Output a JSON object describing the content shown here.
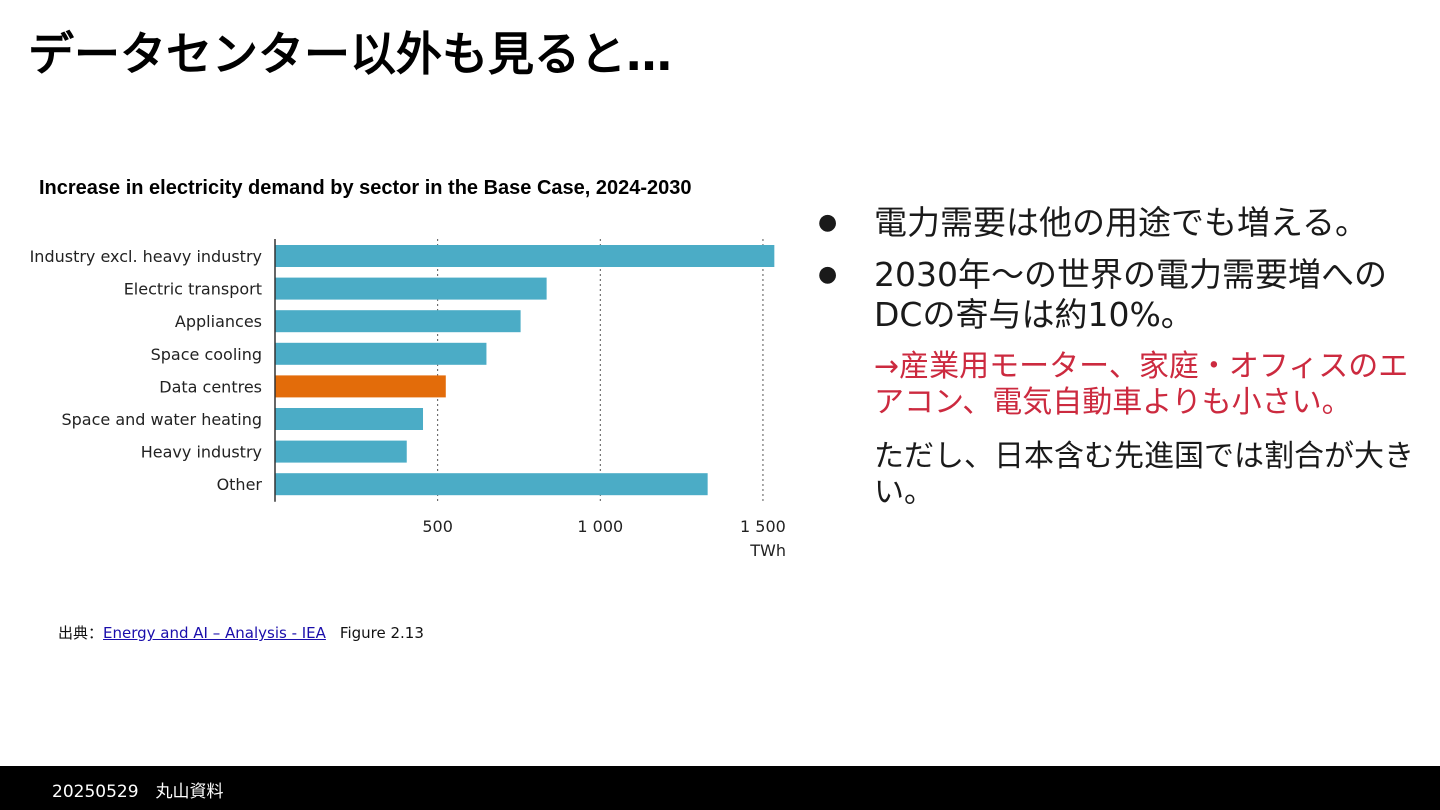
{
  "slide": {
    "title": "データセンター以外も見ると…"
  },
  "chart_data": {
    "type": "bar",
    "orientation": "horizontal",
    "title": "Increase in electricity demand by sector in the Base Case, 2024-2030",
    "categories": [
      "Industry excl. heavy industry",
      "Electric transport",
      "Appliances",
      "Space cooling",
      "Data centres",
      "Space and water heating",
      "Heavy industry",
      "Other"
    ],
    "values": [
      1535,
      835,
      755,
      650,
      525,
      455,
      405,
      1330
    ],
    "highlight": "Data centres",
    "colors": {
      "default": "#4bacc6",
      "highlight": "#e36c0a"
    },
    "xlim": [
      0,
      1550
    ],
    "xticks": [
      500,
      1000,
      1500
    ],
    "xtick_labels": [
      "500",
      "1 000",
      "1 500"
    ],
    "xlabel": "TWh",
    "grid": "vertical dotted"
  },
  "bullets": [
    {
      "text": "電力需要は他の用途でも増える。"
    },
    {
      "text": "2030年～の世界の電力需要増へのDCの寄与は約10%。"
    }
  ],
  "notes": {
    "red": "→産業用モーター、家庭・オフィスのエアコン、電気自動車よりも小さい。",
    "dark": "ただし、日本含む先進国では割合が大きい。"
  },
  "source": {
    "prefix": "出典：",
    "link_text": "Energy and AI – Analysis - IEA",
    "figure": "Figure 2.13"
  },
  "footer": {
    "text": "20250529　丸山資料"
  }
}
